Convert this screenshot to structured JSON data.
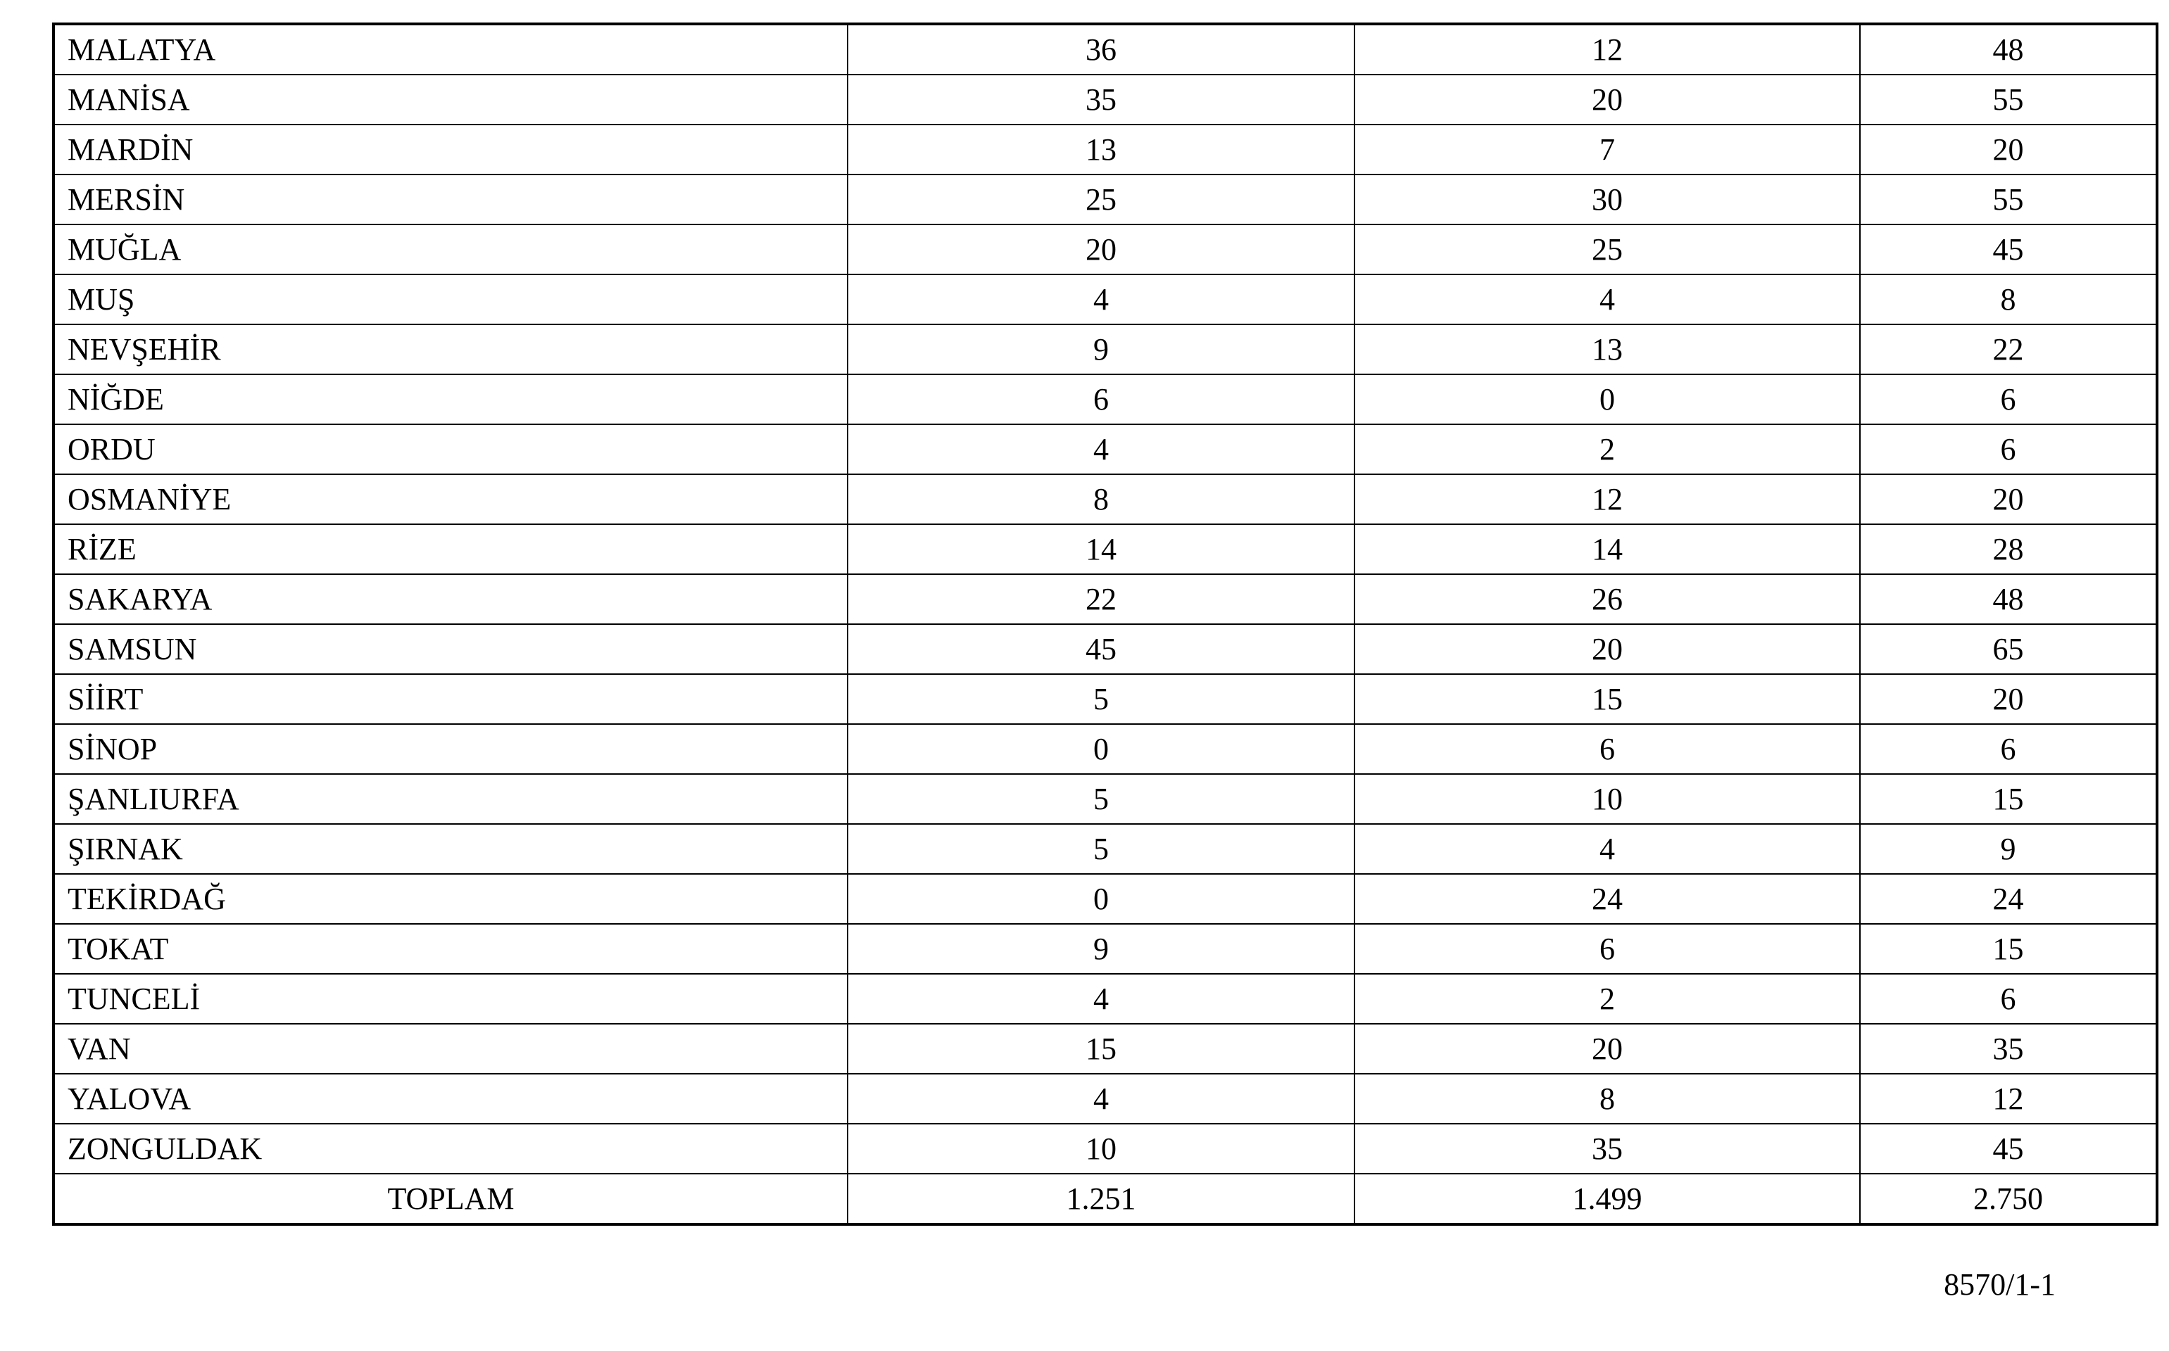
{
  "table": {
    "rows": [
      {
        "name": "MALATYA",
        "c1": "36",
        "c2": "12",
        "c3": "48"
      },
      {
        "name": "MANİSA",
        "c1": "35",
        "c2": "20",
        "c3": "55"
      },
      {
        "name": "MARDİN",
        "c1": "13",
        "c2": "7",
        "c3": "20"
      },
      {
        "name": "MERSİN",
        "c1": "25",
        "c2": "30",
        "c3": "55"
      },
      {
        "name": "MUĞLA",
        "c1": "20",
        "c2": "25",
        "c3": "45"
      },
      {
        "name": "MUŞ",
        "c1": "4",
        "c2": "4",
        "c3": "8"
      },
      {
        "name": "NEVŞEHİR",
        "c1": "9",
        "c2": "13",
        "c3": "22"
      },
      {
        "name": "NİĞDE",
        "c1": "6",
        "c2": "0",
        "c3": "6"
      },
      {
        "name": "ORDU",
        "c1": "4",
        "c2": "2",
        "c3": "6"
      },
      {
        "name": "OSMANİYE",
        "c1": "8",
        "c2": "12",
        "c3": "20"
      },
      {
        "name": "RİZE",
        "c1": "14",
        "c2": "14",
        "c3": "28"
      },
      {
        "name": "SAKARYA",
        "c1": "22",
        "c2": "26",
        "c3": "48"
      },
      {
        "name": "SAMSUN",
        "c1": "45",
        "c2": "20",
        "c3": "65"
      },
      {
        "name": "SİİRT",
        "c1": "5",
        "c2": "15",
        "c3": "20"
      },
      {
        "name": "SİNOP",
        "c1": "0",
        "c2": "6",
        "c3": "6"
      },
      {
        "name": "ŞANLIURFA",
        "c1": "5",
        "c2": "10",
        "c3": "15"
      },
      {
        "name": "ŞIRNAK",
        "c1": "5",
        "c2": "4",
        "c3": "9"
      },
      {
        "name": "TEKİRDAĞ",
        "c1": "0",
        "c2": "24",
        "c3": "24"
      },
      {
        "name": "TOKAT",
        "c1": "9",
        "c2": "6",
        "c3": "15"
      },
      {
        "name": "TUNCELİ",
        "c1": "4",
        "c2": "2",
        "c3": "6"
      },
      {
        "name": "VAN",
        "c1": "15",
        "c2": "20",
        "c3": "35"
      },
      {
        "name": "YALOVA",
        "c1": "4",
        "c2": "8",
        "c3": "12"
      },
      {
        "name": "ZONGULDAK",
        "c1": "10",
        "c2": "35",
        "c3": "45"
      }
    ],
    "total": {
      "name": "TOPLAM",
      "c1": "1.251",
      "c2": "1.499",
      "c3": "2.750"
    }
  },
  "footer": {
    "doc_number": "8570/1-1"
  }
}
